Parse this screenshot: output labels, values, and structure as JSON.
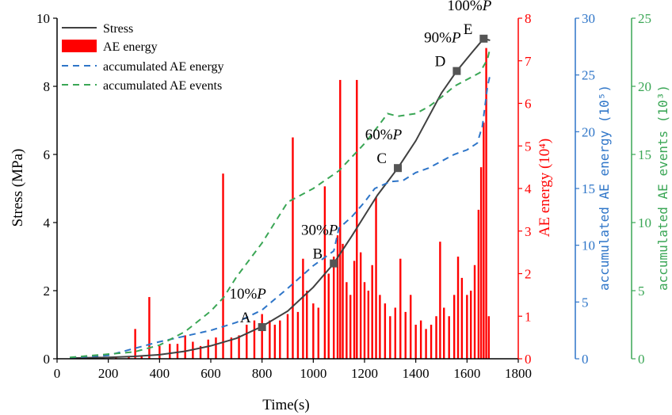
{
  "chart_data": {
    "type": "line",
    "xlabel": "Time(s)",
    "xlim": [
      0,
      1800
    ],
    "x_ticks": [
      "0",
      "200",
      "400",
      "600",
      "800",
      "1000",
      "1200",
      "1400",
      "1600",
      "1800"
    ],
    "axes": {
      "stress": {
        "label": "Stress (MPa)",
        "lim": [
          0,
          10
        ],
        "ticks": [
          "0",
          "2",
          "4",
          "6",
          "8",
          "10"
        ],
        "color": "#000000"
      },
      "ae_energy": {
        "label": "AE energy (10⁴)",
        "lim": [
          0,
          8
        ],
        "ticks": [
          "0",
          "1",
          "2",
          "3",
          "4",
          "5",
          "6",
          "7",
          "8"
        ],
        "color": "#ff0000"
      },
      "acc_energy": {
        "label": "accumulated AE energy (10⁵)",
        "lim": [
          0,
          30
        ],
        "ticks": [
          "0",
          "5",
          "10",
          "15",
          "20",
          "25",
          "30"
        ],
        "color": "#2e75c8"
      },
      "acc_events": {
        "label": "accumulated AE events (10³)",
        "lim": [
          0,
          25
        ],
        "ticks": [
          "0",
          "5",
          "10",
          "15",
          "20",
          "25"
        ],
        "color": "#3aa655"
      }
    },
    "legend": {
      "position": "top-left",
      "entries": [
        "Stress",
        "AE energy",
        "accumulated AE energy",
        "accumulated AE events"
      ]
    },
    "series": [
      {
        "name": "Stress",
        "axis": "stress",
        "style": "solid",
        "color": "#404040",
        "x": [
          50,
          200,
          300,
          400,
          500,
          600,
          700,
          800,
          900,
          1000,
          1080,
          1150,
          1200,
          1250,
          1300,
          1330,
          1400,
          1450,
          1500,
          1560,
          1620,
          1665,
          1690
        ],
        "y": [
          0.02,
          0.04,
          0.07,
          0.12,
          0.22,
          0.38,
          0.6,
          0.95,
          1.4,
          2.1,
          2.8,
          3.6,
          4.2,
          4.8,
          5.3,
          5.6,
          6.4,
          7.1,
          7.8,
          8.45,
          9.0,
          9.4,
          9.35
        ]
      },
      {
        "name": "accumulated AE energy",
        "axis": "acc_energy",
        "style": "dashed",
        "color": "#2e75c8",
        "x": [
          50,
          200,
          400,
          600,
          700,
          800,
          900,
          1000,
          1080,
          1100,
          1150,
          1200,
          1240,
          1300,
          1350,
          1400,
          1450,
          1500,
          1550,
          1600,
          1640,
          1660,
          1680,
          1690
        ],
        "y": [
          0.1,
          0.3,
          1.5,
          2.5,
          3.2,
          4.3,
          6.2,
          8.2,
          9.5,
          11.5,
          12.5,
          13.8,
          15.0,
          15.6,
          15.7,
          16.4,
          16.8,
          17.4,
          18.0,
          18.4,
          19.0,
          20.5,
          24.0,
          25.0
        ]
      },
      {
        "name": "accumulated AE events",
        "axis": "acc_events",
        "style": "dashed",
        "color": "#3aa655",
        "x": [
          50,
          300,
          400,
          500,
          600,
          650,
          700,
          800,
          850,
          900,
          1000,
          1100,
          1150,
          1200,
          1250,
          1290,
          1330,
          1400,
          1450,
          1500,
          1550,
          1600,
          1650,
          1680,
          1690
        ],
        "y": [
          0.1,
          0.5,
          1.0,
          2.0,
          3.5,
          4.5,
          6.0,
          8.5,
          10.0,
          11.5,
          12.5,
          13.8,
          14.8,
          15.8,
          17.0,
          18.0,
          17.8,
          18.0,
          18.5,
          19.2,
          20.0,
          20.5,
          21.0,
          22.0,
          22.8
        ]
      }
    ],
    "bars": {
      "name": "AE energy",
      "axis": "ae_energy",
      "color": "#ff0000",
      "x": [
        80,
        130,
        180,
        230,
        280,
        305,
        330,
        360,
        400,
        440,
        470,
        500,
        530,
        560,
        590,
        620,
        648,
        680,
        710,
        740,
        770,
        800,
        830,
        850,
        870,
        900,
        920,
        940,
        960,
        975,
        1000,
        1020,
        1045,
        1060,
        1080,
        1095,
        1105,
        1115,
        1130,
        1145,
        1160,
        1170,
        1185,
        1200,
        1215,
        1230,
        1245,
        1260,
        1280,
        1300,
        1320,
        1340,
        1360,
        1380,
        1400,
        1420,
        1440,
        1460,
        1480,
        1495,
        1510,
        1530,
        1550,
        1565,
        1580,
        1600,
        1615,
        1630,
        1645,
        1655,
        1665,
        1675,
        1685
      ],
      "y": [
        0.02,
        0.03,
        0.03,
        0.04,
        0.05,
        0.7,
        0.08,
        1.45,
        0.3,
        0.35,
        0.35,
        0.55,
        0.4,
        0.3,
        0.45,
        0.5,
        4.35,
        0.5,
        0.55,
        0.8,
        0.9,
        1.05,
        0.9,
        0.8,
        0.9,
        1.05,
        5.2,
        1.1,
        2.35,
        1.6,
        1.3,
        1.2,
        4.05,
        2.0,
        2.4,
        2.9,
        6.55,
        2.7,
        1.8,
        1.5,
        2.3,
        6.55,
        2.5,
        1.8,
        1.6,
        2.2,
        3.8,
        1.5,
        1.3,
        1.0,
        1.2,
        2.35,
        1.1,
        1.5,
        0.8,
        0.9,
        0.7,
        0.8,
        1.0,
        2.75,
        1.2,
        1.0,
        1.5,
        2.4,
        1.9,
        1.5,
        1.6,
        2.2,
        3.5,
        4.5,
        5.55,
        7.3,
        1.0
      ]
    },
    "markers": [
      {
        "label": "A",
        "pct_prefix": "10%",
        "x": 800,
        "y": 0.93
      },
      {
        "label": "B",
        "pct_prefix": "30%",
        "x": 1080,
        "y": 2.8
      },
      {
        "label": "C",
        "pct_prefix": "60%",
        "x": 1330,
        "y": 5.6
      },
      {
        "label": "D",
        "pct_prefix": "90%",
        "x": 1560,
        "y": 8.45
      },
      {
        "label": "E",
        "pct_prefix": "100%",
        "x": 1665,
        "y": 9.4
      }
    ],
    "pct_suffix": "P"
  }
}
